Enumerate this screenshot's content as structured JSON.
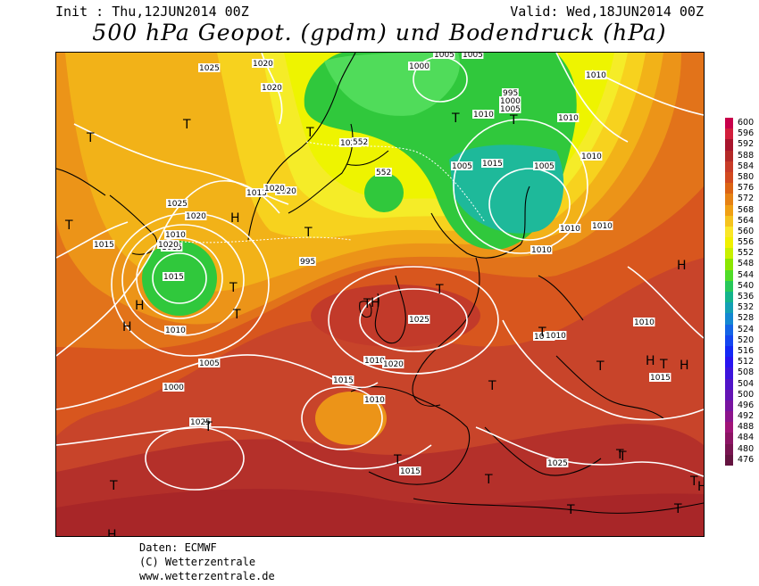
{
  "header": {
    "init": "Init : Thu,12JUN2014 00Z",
    "valid": "Valid: Wed,18JUN2014 00Z",
    "title": "500 hPa Geopot. (gpdm) und Bodendruck (hPa)"
  },
  "footer": {
    "line1": "Daten: ECMWF",
    "line2": "(C) Wetterzentrale",
    "line3": "www.wetterzentrale.de"
  },
  "legend": {
    "values": [
      "600",
      "596",
      "592",
      "588",
      "584",
      "580",
      "576",
      "572",
      "568",
      "564",
      "560",
      "556",
      "552",
      "548",
      "544",
      "540",
      "536",
      "532",
      "528",
      "524",
      "520",
      "516",
      "512",
      "508",
      "504",
      "500",
      "496",
      "492",
      "488",
      "484",
      "480",
      "476"
    ],
    "colors": [
      "#c8004b",
      "#d21e3c",
      "#a8152d",
      "#b42a28",
      "#c83c28",
      "#d24a20",
      "#dc6414",
      "#e68214",
      "#f0a014",
      "#f5c31e",
      "#fae628",
      "#f0f000",
      "#c8f000",
      "#8ce600",
      "#50dc28",
      "#28c85a",
      "#14b48c",
      "#14a0b4",
      "#1488d2",
      "#1464e6",
      "#1446f0",
      "#1428f5",
      "#2814f0",
      "#3c14dc",
      "#5014c8",
      "#6414b4",
      "#7814a0",
      "#8c148c",
      "#a01478",
      "#8c1464",
      "#781450",
      "#641440"
    ]
  },
  "map": {
    "isobar_labels": [
      "1025",
      "1020",
      "1020",
      "1005",
      "1010",
      "1000",
      "1005",
      "995",
      "1000",
      "1005",
      "1010",
      "1005",
      "1010",
      "1010",
      "1010",
      "1015",
      "1005",
      "1025",
      "552",
      "552",
      "1020",
      "1013",
      "1020",
      "1025",
      "1020",
      "1010",
      "1015",
      "1015",
      "1020",
      "1015",
      "1010",
      "1005",
      "1000",
      "995",
      "1025",
      "1025",
      "1010",
      "1015",
      "1020",
      "1015",
      "1010",
      "1025",
      "1015",
      "1010",
      "1010",
      "1010",
      "1015",
      "1010",
      "1010"
    ],
    "pressure_centers": [
      "T",
      "T",
      "T",
      "T",
      "T",
      "H",
      "T",
      "T",
      "T",
      "T",
      "H",
      "T",
      "H",
      "T",
      "H",
      "T",
      "H",
      "H",
      "T",
      "T",
      "T",
      "T",
      "T",
      "T",
      "T",
      "T",
      "T",
      "T",
      "T",
      "T",
      "H",
      "H",
      "H"
    ]
  }
}
